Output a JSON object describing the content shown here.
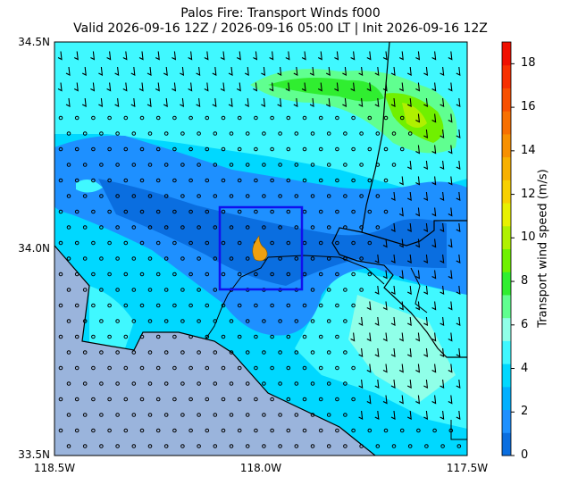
{
  "header": {
    "title_line1": "Palos Fire: Transport Winds f000",
    "title_line2": "Valid 2026-09-16 12Z / 2026-09-16 05:00 LT | Init 2026-09-16 12Z"
  },
  "map": {
    "lat_labels": [
      "34.5N",
      "34.0N",
      "33.5N"
    ],
    "lon_labels": [
      "118.5W",
      "118.0W",
      "117.5W"
    ],
    "extent": {
      "lon": [
        -118.5,
        -117.5
      ],
      "lat": [
        33.5,
        34.5
      ]
    },
    "ocean_color": "#9ab4dc",
    "fire_icon": "flame-icon",
    "fire_color": "#f0a010",
    "analysis_box": {
      "lon": [
        -118.1,
        -117.9
      ],
      "lat": [
        33.9,
        34.1
      ],
      "color": "#1010ee"
    }
  },
  "colorbar": {
    "label": "Transport wind speed (m/s)",
    "ticks": [
      "0",
      "2",
      "4",
      "6",
      "8",
      "10",
      "12",
      "14",
      "16",
      "18"
    ],
    "range": [
      0,
      19
    ],
    "colors": [
      "#0a6ee0",
      "#1e90ff",
      "#00b0ff",
      "#00d8ff",
      "#40f8ff",
      "#90ffe8",
      "#60ff90",
      "#30ee30",
      "#70f000",
      "#b0f000",
      "#e8f000",
      "#f8d000",
      "#f8b000",
      "#f89000",
      "#f87000",
      "#f85000",
      "#f83000",
      "#f01000"
    ]
  }
}
